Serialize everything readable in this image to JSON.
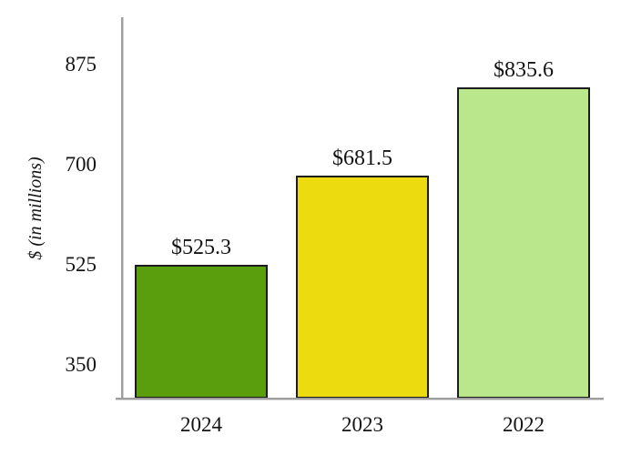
{
  "chart_data": {
    "type": "bar",
    "categories": [
      "2024",
      "2023",
      "2022"
    ],
    "values": [
      525.3,
      681.5,
      835.6
    ],
    "value_labels": [
      "$525.3",
      "$681.5",
      "$835.6"
    ],
    "bar_colors": [
      "#5a9e0d",
      "#ecdb0e",
      "#bae68c"
    ],
    "bar_border_color": "#1c1c1c",
    "title": "",
    "xlabel": "",
    "ylabel": "$ (in millions)",
    "y_ticks": [
      350,
      525,
      700,
      875
    ],
    "ylim": [
      291,
      958
    ],
    "axis_color": "#9e9e9e",
    "grid": false,
    "legend": false,
    "background_color": "#ffffff"
  }
}
